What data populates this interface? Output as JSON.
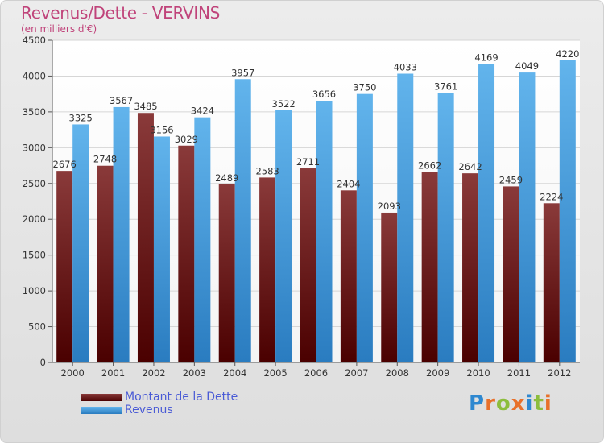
{
  "title": "Revenus/Dette - VERVINS",
  "subtitle": "(en milliers d'€)",
  "logo": {
    "text": "Proxiti",
    "letter_colors": [
      "#2e88d0",
      "#e8702a",
      "#8cbd3c",
      "#e8702a",
      "#2e88d0",
      "#8cbd3c",
      "#e8702a"
    ]
  },
  "chart_data": {
    "type": "bar",
    "title": "Revenus/Dette - VERVINS",
    "subtitle": "(en milliers d'€)",
    "categories": [
      "2000",
      "2001",
      "2002",
      "2003",
      "2004",
      "2005",
      "2006",
      "2007",
      "2008",
      "2009",
      "2010",
      "2011",
      "2012"
    ],
    "series": [
      {
        "name": "Montant de la Dette",
        "values": [
          2676,
          2748,
          3485,
          3029,
          2489,
          2583,
          2711,
          2404,
          2093,
          2662,
          2642,
          2459,
          2224
        ],
        "labels": [
          "2676",
          "2748",
          "3485",
          "3029",
          "2489",
          "2583",
          "2711",
          "2404",
          "2093",
          "2662",
          "2642",
          "2459",
          "2224"
        ],
        "color_top": "#8a3a3a",
        "color_bottom": "#4a0000"
      },
      {
        "name": "Revenus",
        "values": [
          3325,
          3567,
          3156,
          3424,
          3957,
          3522,
          3656,
          3750,
          4033,
          3761,
          4169,
          4049,
          4220
        ],
        "labels": [
          "3325",
          "3567",
          "3156",
          "3424",
          "3957",
          "3522",
          "3656",
          "3750",
          "4033",
          "3761",
          "4169",
          "4049",
          "4220"
        ],
        "color_top": "#62b4ec",
        "color_bottom": "#2a7cc0"
      }
    ],
    "ylim": [
      0,
      4500
    ],
    "yticks": [
      "0",
      "500",
      "1000",
      "1500",
      "2000",
      "2500",
      "3000",
      "3500",
      "4000",
      "4500"
    ],
    "grid": true,
    "legend_position": "bottom-left"
  }
}
